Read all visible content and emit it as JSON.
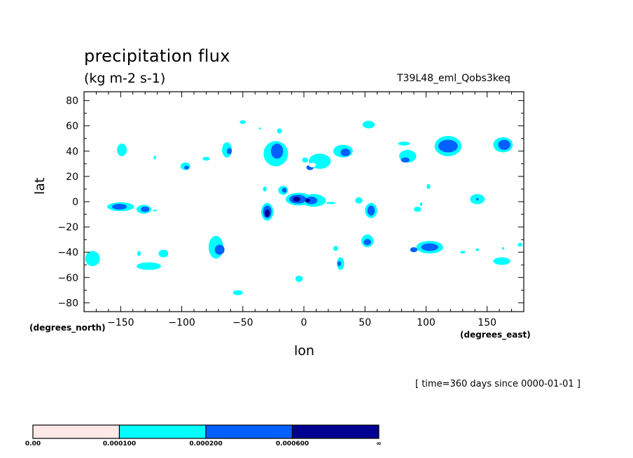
{
  "chart_data": {
    "type": "heatmap",
    "title": "precipitation flux",
    "units": "(kg m-2 s-1)",
    "run_id": "T39L48_eml_Qobs3keq",
    "xlabel": "lon",
    "ylabel": "lat",
    "x_units": "(degrees_east)",
    "y_units": "(degrees_north)",
    "xlim": [
      -180,
      180
    ],
    "ylim": [
      -87,
      87
    ],
    "x_ticks": [
      -150,
      -100,
      -50,
      0,
      50,
      100,
      150
    ],
    "y_ticks": [
      80,
      60,
      40,
      20,
      0,
      -20,
      -40,
      -60,
      -80
    ],
    "grid": false,
    "time_note": "[ time=360 days since 0000-01-01 ]",
    "colorbar": {
      "placement": "bottom",
      "levels": [
        "0.00",
        "0.000100",
        "0.000200",
        "0.000600",
        "∞"
      ],
      "colors": [
        "#ffe8e8",
        "#00ffff",
        "#0060ff",
        "#000090"
      ]
    },
    "features": [
      {
        "lon": -150,
        "lat": -4,
        "rx": 11,
        "ry": 3.5,
        "level": 1
      },
      {
        "lon": -151,
        "lat": -4,
        "rx": 6,
        "ry": 2.3,
        "level": 2
      },
      {
        "lon": -131,
        "lat": -6,
        "rx": 6,
        "ry": 3.5,
        "level": 1
      },
      {
        "lon": -130,
        "lat": -6,
        "rx": 3.5,
        "ry": 2.2,
        "level": 2
      },
      {
        "lon": -122,
        "lat": -7,
        "rx": 2,
        "ry": 0.6,
        "level": 1
      },
      {
        "lon": -173,
        "lat": -45,
        "rx": 6,
        "ry": 6,
        "level": 1
      },
      {
        "lon": -149,
        "lat": 41,
        "rx": 4,
        "ry": 5,
        "level": 1
      },
      {
        "lon": -122,
        "lat": 35,
        "rx": 1,
        "ry": 1.5,
        "level": 1
      },
      {
        "lon": -97,
        "lat": 28,
        "rx": 4,
        "ry": 3,
        "level": 1
      },
      {
        "lon": -96,
        "lat": 27,
        "rx": 2,
        "ry": 1.5,
        "level": 2
      },
      {
        "lon": -80,
        "lat": 34,
        "rx": 3,
        "ry": 1.5,
        "level": 1
      },
      {
        "lon": -63,
        "lat": 41,
        "rx": 4,
        "ry": 6,
        "level": 1
      },
      {
        "lon": -61,
        "lat": 40,
        "rx": 2,
        "ry": 2.5,
        "level": 2
      },
      {
        "lon": -50,
        "lat": 63,
        "rx": 2.5,
        "ry": 1.5,
        "level": 1
      },
      {
        "lon": -36,
        "lat": 58,
        "rx": 1,
        "ry": 0.7,
        "level": 1
      },
      {
        "lon": -23,
        "lat": 38,
        "rx": 10,
        "ry": 10,
        "level": 1
      },
      {
        "lon": -22,
        "lat": 40,
        "rx": 5,
        "ry": 6,
        "level": 2
      },
      {
        "lon": -20,
        "lat": 56,
        "rx": 2,
        "ry": 2,
        "level": 1
      },
      {
        "lon": -32,
        "lat": 10,
        "rx": 1.5,
        "ry": 2,
        "level": 1
      },
      {
        "lon": -17,
        "lat": 9,
        "rx": 4,
        "ry": 3.5,
        "level": 1
      },
      {
        "lon": -16,
        "lat": 9,
        "rx": 2,
        "ry": 2,
        "level": 2
      },
      {
        "lon": -30,
        "lat": -8,
        "rx": 5,
        "ry": 7,
        "level": 1
      },
      {
        "lon": -30,
        "lat": -8,
        "rx": 3.5,
        "ry": 5,
        "level": 2
      },
      {
        "lon": -30,
        "lat": -9,
        "rx": 2,
        "ry": 3,
        "level": 3
      },
      {
        "lon": -4,
        "lat": 2,
        "rx": 11,
        "ry": 5,
        "level": 1
      },
      {
        "lon": 8,
        "lat": 1,
        "rx": 10,
        "ry": 5,
        "level": 1
      },
      {
        "lon": -5,
        "lat": 2,
        "rx": 7,
        "ry": 3.5,
        "level": 2
      },
      {
        "lon": 6,
        "lat": 1,
        "rx": 5,
        "ry": 3,
        "level": 2
      },
      {
        "lon": -6,
        "lat": 2,
        "rx": 3,
        "ry": 2,
        "level": 3
      },
      {
        "lon": 3,
        "lat": 1,
        "rx": 2,
        "ry": 1.5,
        "level": 3
      },
      {
        "lon": 22,
        "lat": -1,
        "rx": 4,
        "ry": 0.8,
        "level": 1
      },
      {
        "lon": 45,
        "lat": 1,
        "rx": 3,
        "ry": 2.5,
        "level": 1
      },
      {
        "lon": 1,
        "lat": 33,
        "rx": 2.5,
        "ry": 2,
        "level": 1
      },
      {
        "lon": 13,
        "lat": 32,
        "rx": 9,
        "ry": 6,
        "level": 1
      },
      {
        "lon": 5,
        "lat": 27,
        "rx": 3,
        "ry": 2,
        "level": 2
      },
      {
        "lon": 32,
        "lat": 40,
        "rx": 8,
        "ry": 5,
        "level": 1
      },
      {
        "lon": 34,
        "lat": 39,
        "rx": 4,
        "ry": 3,
        "level": 2
      },
      {
        "lon": 53,
        "lat": 61,
        "rx": 5,
        "ry": 3,
        "level": 1
      },
      {
        "lon": 55,
        "lat": -7,
        "rx": 5,
        "ry": 6,
        "level": 1
      },
      {
        "lon": 55,
        "lat": -7,
        "rx": 3,
        "ry": 4,
        "level": 2
      },
      {
        "lon": 52,
        "lat": -31,
        "rx": 5,
        "ry": 5,
        "level": 1
      },
      {
        "lon": 52,
        "lat": -32,
        "rx": 3,
        "ry": 2.5,
        "level": 2
      },
      {
        "lon": 26,
        "lat": -37,
        "rx": 2,
        "ry": 2,
        "level": 1
      },
      {
        "lon": 30,
        "lat": -49,
        "rx": 3,
        "ry": 5,
        "level": 1
      },
      {
        "lon": 29,
        "lat": -49,
        "rx": 1.5,
        "ry": 2,
        "level": 2
      },
      {
        "lon": -4,
        "lat": -61,
        "rx": 3,
        "ry": 2.5,
        "level": 1
      },
      {
        "lon": -54,
        "lat": -72,
        "rx": 4,
        "ry": 2,
        "level": 1
      },
      {
        "lon": 82,
        "lat": 46,
        "rx": 5,
        "ry": 1.5,
        "level": 1
      },
      {
        "lon": 85,
        "lat": 36,
        "rx": 7,
        "ry": 5,
        "level": 1
      },
      {
        "lon": 83,
        "lat": 33,
        "rx": 3.5,
        "ry": 2,
        "level": 2
      },
      {
        "lon": 102,
        "lat": 12,
        "rx": 1.5,
        "ry": 2,
        "level": 1
      },
      {
        "lon": 93,
        "lat": -6,
        "rx": 3,
        "ry": 2,
        "level": 1
      },
      {
        "lon": 96,
        "lat": -2,
        "rx": 1,
        "ry": 1.5,
        "level": 1
      },
      {
        "lon": 118,
        "lat": 44,
        "rx": 11,
        "ry": 8,
        "level": 1
      },
      {
        "lon": 118,
        "lat": 44,
        "rx": 8,
        "ry": 5,
        "level": 2
      },
      {
        "lon": 142,
        "lat": 2,
        "rx": 6,
        "ry": 4,
        "level": 1
      },
      {
        "lon": 142,
        "lat": 2,
        "rx": 1,
        "ry": 1,
        "level": 2
      },
      {
        "lon": 163,
        "lat": 45,
        "rx": 8,
        "ry": 6,
        "level": 1
      },
      {
        "lon": 164,
        "lat": 45,
        "rx": 5,
        "ry": 4,
        "level": 2
      },
      {
        "lon": 103,
        "lat": -36,
        "rx": 11,
        "ry": 5,
        "level": 1
      },
      {
        "lon": 103,
        "lat": -36,
        "rx": 7,
        "ry": 3,
        "level": 2
      },
      {
        "lon": 90,
        "lat": -38,
        "rx": 3,
        "ry": 2,
        "level": 2
      },
      {
        "lon": 130,
        "lat": -40,
        "rx": 2,
        "ry": 1,
        "level": 1
      },
      {
        "lon": 142,
        "lat": -38,
        "rx": 1.5,
        "ry": 1,
        "level": 1
      },
      {
        "lon": 162,
        "lat": -47,
        "rx": 7,
        "ry": 3,
        "level": 1
      },
      {
        "lon": 177,
        "lat": -34,
        "rx": 2,
        "ry": 1.5,
        "level": 1
      },
      {
        "lon": 163,
        "lat": -37,
        "rx": 1,
        "ry": 1,
        "level": 1
      },
      {
        "lon": -127,
        "lat": -51,
        "rx": 10,
        "ry": 3,
        "level": 1
      },
      {
        "lon": -115,
        "lat": -41,
        "rx": 4,
        "ry": 3,
        "level": 1
      },
      {
        "lon": -135,
        "lat": -41,
        "rx": 1.5,
        "ry": 2,
        "level": 1
      },
      {
        "lon": -72,
        "lat": -36,
        "rx": 6,
        "ry": 9,
        "level": 1
      },
      {
        "lon": -69,
        "lat": -38,
        "rx": 4,
        "ry": 4,
        "level": 2
      },
      {
        "lon": 7,
        "lat": 29,
        "rx": 3,
        "ry": 1.8,
        "level": 0
      }
    ]
  }
}
